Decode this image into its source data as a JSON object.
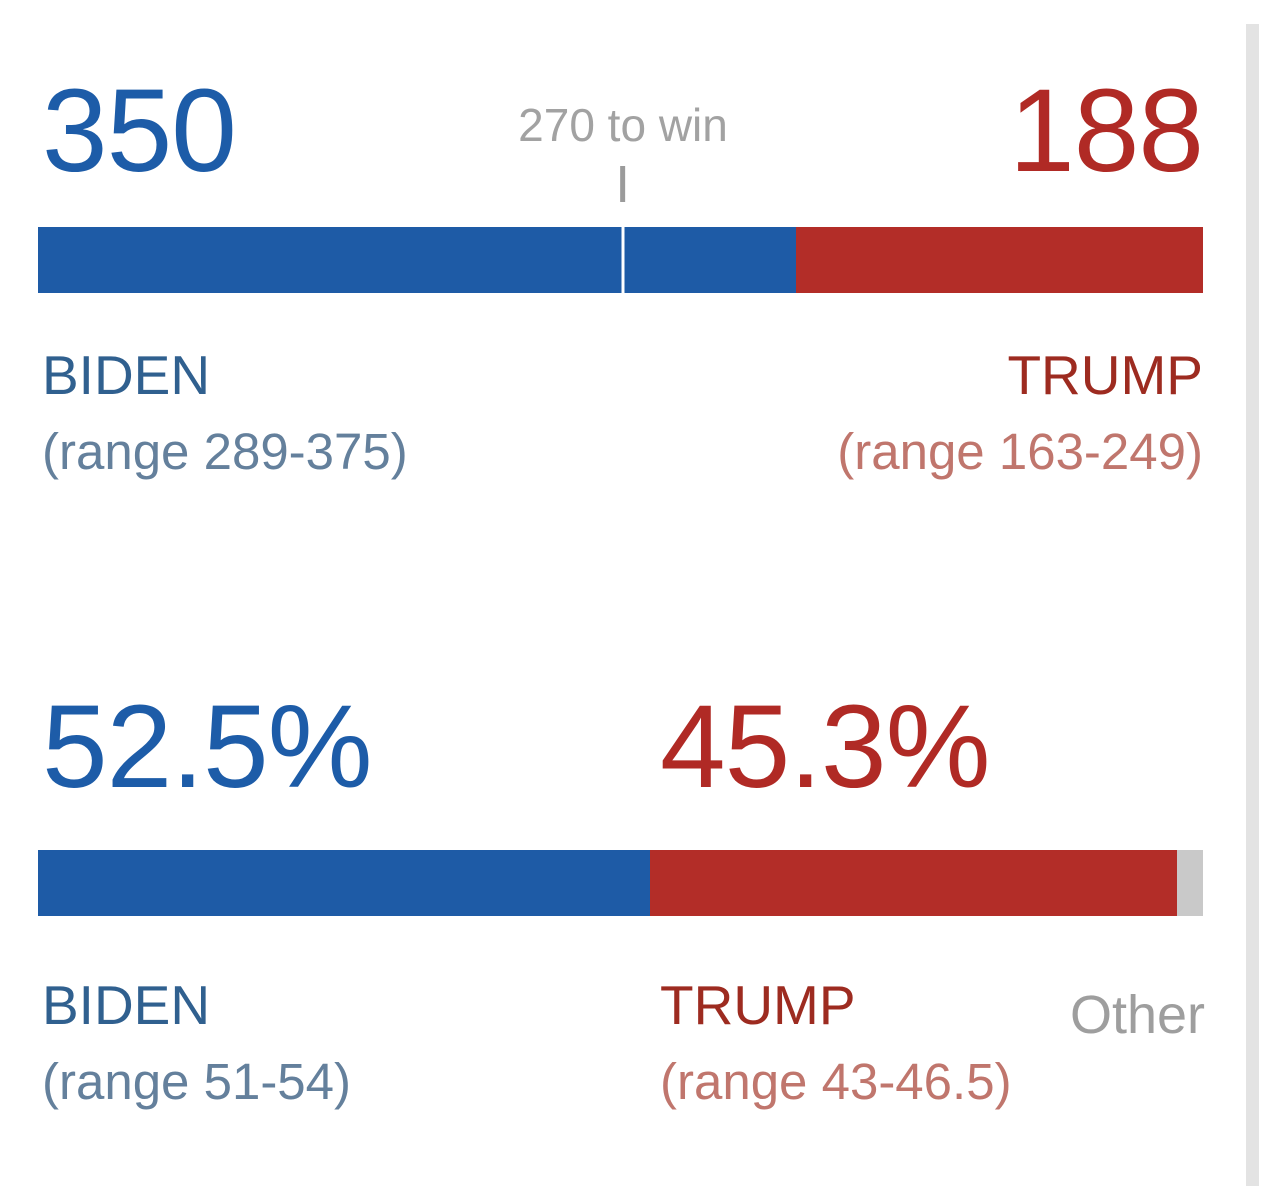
{
  "chart_data": [
    {
      "type": "bar",
      "subtype": "stacked-horizontal",
      "title": "Electoral vote forecast",
      "total": 538,
      "threshold": {
        "value": 270,
        "label": "270 to win"
      },
      "series": [
        {
          "name": "BIDEN",
          "value": 350,
          "range_low": 289,
          "range_high": 375,
          "color": "#1e5ba6"
        },
        {
          "name": "TRUMP",
          "value": 188,
          "range_low": 163,
          "range_high": 249,
          "color": "#b32d28"
        }
      ]
    },
    {
      "type": "bar",
      "subtype": "stacked-horizontal",
      "title": "Popular vote share forecast (%)",
      "total": 100,
      "series": [
        {
          "name": "BIDEN",
          "value": 52.5,
          "range_low": 51,
          "range_high": 54,
          "color": "#1e5ba6"
        },
        {
          "name": "TRUMP",
          "value": 45.3,
          "range_low": 43,
          "range_high": 46.5,
          "color": "#b32d28"
        },
        {
          "name": "Other",
          "value": 2.2,
          "color": "#c9c9c9"
        }
      ]
    }
  ],
  "ui": {
    "electoral": {
      "biden_total": "350",
      "to_win_label": "270 to win",
      "trump_total": "188",
      "biden_name": "BIDEN",
      "biden_range": "(range 289-375)",
      "trump_name": "TRUMP",
      "trump_range": "(range 163-249)"
    },
    "popular": {
      "biden_pct": "52.5%",
      "trump_pct": "45.3%",
      "biden_name": "BIDEN",
      "biden_range": "(range 51-54)",
      "trump_name": "TRUMP",
      "trump_range": "(range 43-46.5)",
      "other_name": "Other"
    },
    "colors": {
      "biden_bar": "#1e5ba6",
      "trump_bar": "#b32d28",
      "other_bar": "#c9c9c9",
      "biden_headline": "#1d5ca8",
      "trump_headline": "#b02a25",
      "threshold_gray": "#a2a2a2"
    }
  }
}
